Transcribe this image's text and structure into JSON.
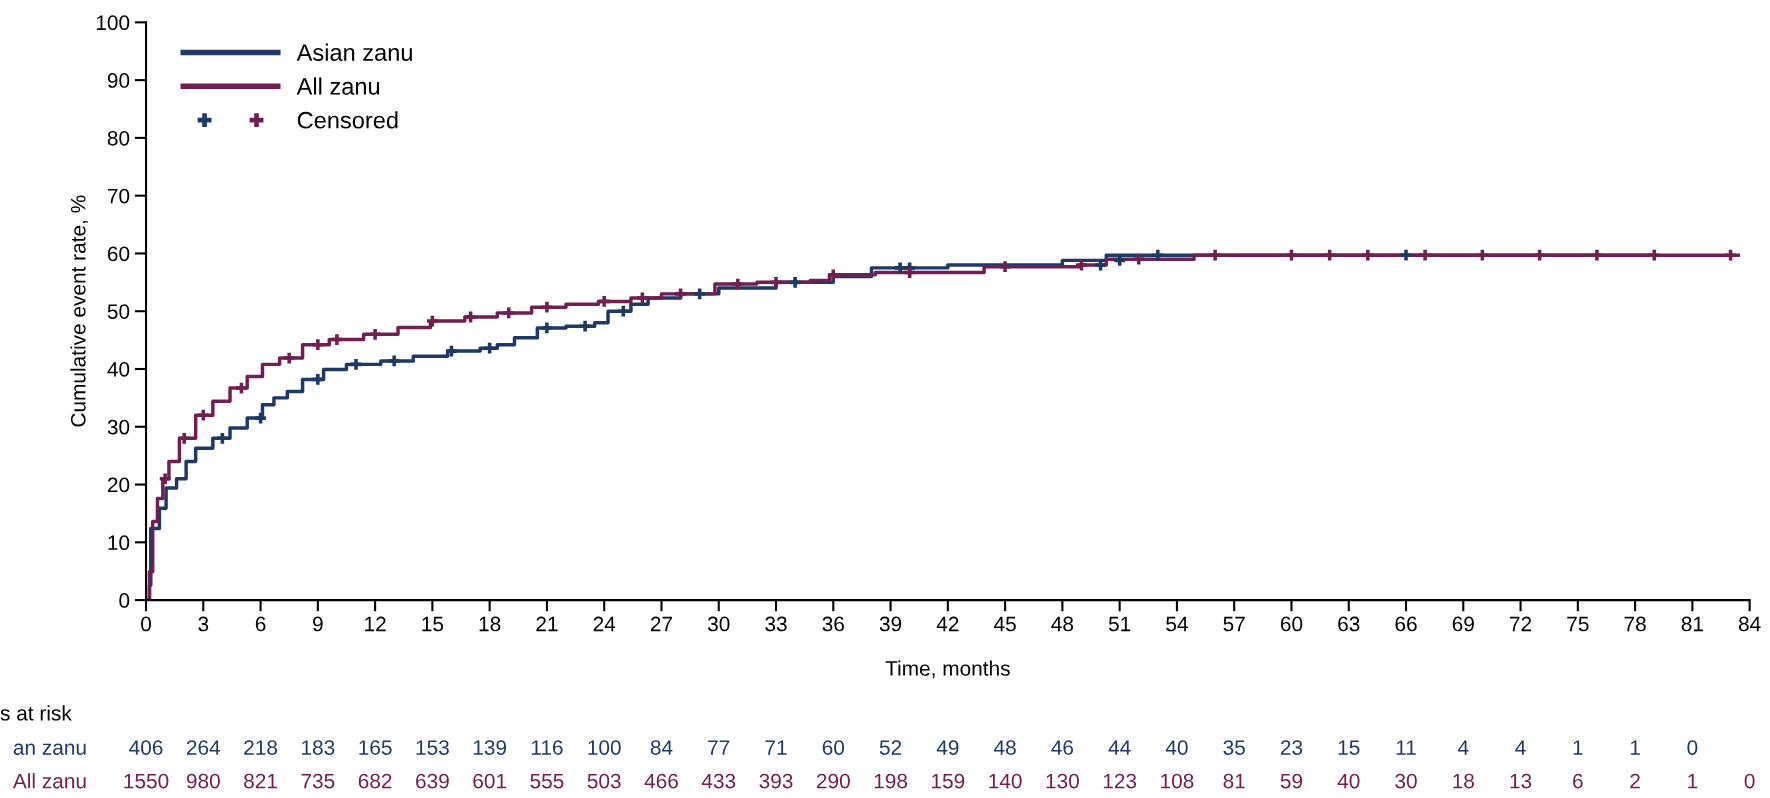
{
  "chart_data": {
    "type": "step",
    "xlabel": "Time, months",
    "ylabel": "Cumulative event rate, %",
    "xlim": [
      0,
      84
    ],
    "xticks": [
      0,
      3,
      6,
      9,
      12,
      15,
      18,
      21,
      24,
      27,
      30,
      33,
      36,
      39,
      42,
      45,
      48,
      51,
      54,
      57,
      60,
      63,
      66,
      69,
      72,
      75,
      78,
      81,
      84
    ],
    "ylim": [
      0,
      100
    ],
    "yticks": [
      0,
      10,
      20,
      30,
      40,
      50,
      60,
      70,
      80,
      90,
      100
    ],
    "grid": false,
    "legend": "top left",
    "series": [
      {
        "name": "Asian zanu",
        "color": "#1f3864",
        "x": [
          0,
          0.18,
          0.25,
          0.7,
          1.05,
          1.6,
          2.1,
          2.6,
          3.5,
          4.4,
          5.3,
          6.1,
          6.7,
          7.4,
          8.2,
          9.3,
          10.5,
          12.3,
          14,
          15.8,
          17.5,
          18.4,
          19.3,
          20.5,
          22,
          23.5,
          24.2,
          25.4,
          26.3,
          28,
          30,
          33,
          36,
          38,
          42,
          48,
          50.3,
          57,
          79
        ],
        "values": [
          0,
          2.6,
          12.4,
          15.9,
          19.4,
          21,
          24,
          26.3,
          28,
          29.8,
          31.5,
          33.8,
          35,
          36.1,
          38.2,
          39.9,
          40.8,
          41.4,
          42.2,
          43.1,
          43.6,
          44.2,
          45.4,
          47.1,
          47.4,
          48,
          50,
          51.2,
          52.3,
          53,
          54,
          55,
          56,
          57.5,
          58,
          58.8,
          59.7,
          59.7,
          59.7
        ]
      },
      {
        "name": "All zanu",
        "color": "#702050",
        "x": [
          0,
          0.18,
          0.35,
          0.6,
          0.88,
          1.2,
          1.75,
          2.6,
          3.5,
          4.4,
          5.3,
          6.1,
          7,
          8.2,
          9.6,
          11.4,
          13.2,
          14.9,
          16.7,
          18.4,
          20.2,
          22,
          23.7,
          25.4,
          27,
          29.8,
          32,
          34.8,
          35.8,
          38.2,
          43.9,
          48.9,
          50.3,
          54.9,
          57,
          83.4
        ],
        "values": [
          0,
          4.9,
          13.6,
          17.6,
          21,
          24,
          28,
          32,
          34.4,
          36.7,
          38.7,
          40.8,
          41.9,
          44.2,
          45.1,
          46,
          47.2,
          48.3,
          49,
          49.7,
          50.7,
          51.2,
          51.7,
          52.3,
          53,
          54.7,
          55,
          55.3,
          56.3,
          56.7,
          57.7,
          58,
          59,
          59.7,
          59.7,
          59.7
        ]
      },
      {
        "name": "Censored",
        "type": "scatter",
        "marker": "cross",
        "x": [
          4,
          6,
          9,
          11,
          13,
          16,
          18,
          21,
          23,
          25,
          29,
          34,
          39.5,
          40,
          50,
          51,
          53,
          66,
          1,
          2,
          3,
          5,
          7.5,
          9,
          10,
          12,
          15,
          17,
          19,
          21,
          24,
          26,
          28,
          31,
          33,
          36,
          40,
          45,
          49,
          52,
          56,
          60,
          62,
          64,
          67,
          70,
          73,
          76,
          79,
          83
        ],
        "values": [
          28,
          31.5,
          38.2,
          40.8,
          41.4,
          43.1,
          43.6,
          47.1,
          47.4,
          50,
          53,
          55,
          57.5,
          57.5,
          58,
          58.8,
          59.7,
          59.7,
          21,
          28,
          32,
          36.7,
          41.9,
          44.2,
          45.1,
          46,
          48.3,
          49,
          49.7,
          50.7,
          51.7,
          52.3,
          53,
          54.7,
          55,
          56.3,
          56.7,
          57.7,
          58,
          59,
          59.7,
          59.7,
          59.7,
          59.7,
          59.7,
          59.7,
          59.7,
          59.7,
          59.7,
          59.7
        ],
        "colors": [
          "#1f3864",
          "#1f3864",
          "#1f3864",
          "#1f3864",
          "#1f3864",
          "#1f3864",
          "#1f3864",
          "#1f3864",
          "#1f3864",
          "#1f3864",
          "#1f3864",
          "#1f3864",
          "#1f3864",
          "#1f3864",
          "#1f3864",
          "#1f3864",
          "#1f3864",
          "#1f3864",
          "#702050",
          "#702050",
          "#702050",
          "#702050",
          "#702050",
          "#702050",
          "#702050",
          "#702050",
          "#702050",
          "#702050",
          "#702050",
          "#702050",
          "#702050",
          "#702050",
          "#702050",
          "#702050",
          "#702050",
          "#702050",
          "#702050",
          "#702050",
          "#702050",
          "#702050",
          "#702050",
          "#702050",
          "#702050",
          "#702050",
          "#702050",
          "#702050",
          "#702050",
          "#702050",
          "#702050",
          "#702050"
        ]
      }
    ],
    "annotations": [
      "s at risk",
      "an zanu",
      "406",
      "264",
      "218",
      "183",
      "165",
      "153",
      "139",
      "116",
      "100",
      "84",
      "77",
      "71",
      "60",
      "52",
      "49",
      "48",
      "46",
      "44",
      "40",
      "35",
      "23",
      "15",
      "11",
      "4",
      "4",
      "1",
      "1",
      "0",
      "All zanu",
      "1550",
      "980",
      "821",
      "735",
      "682",
      "639",
      "601",
      "555",
      "503",
      "466",
      "433",
      "393",
      "290",
      "198",
      "159",
      "140",
      "130",
      "123",
      "108",
      "81",
      "59",
      "40",
      "30",
      "18",
      "13",
      "6",
      "2",
      "1",
      "0"
    ]
  }
}
